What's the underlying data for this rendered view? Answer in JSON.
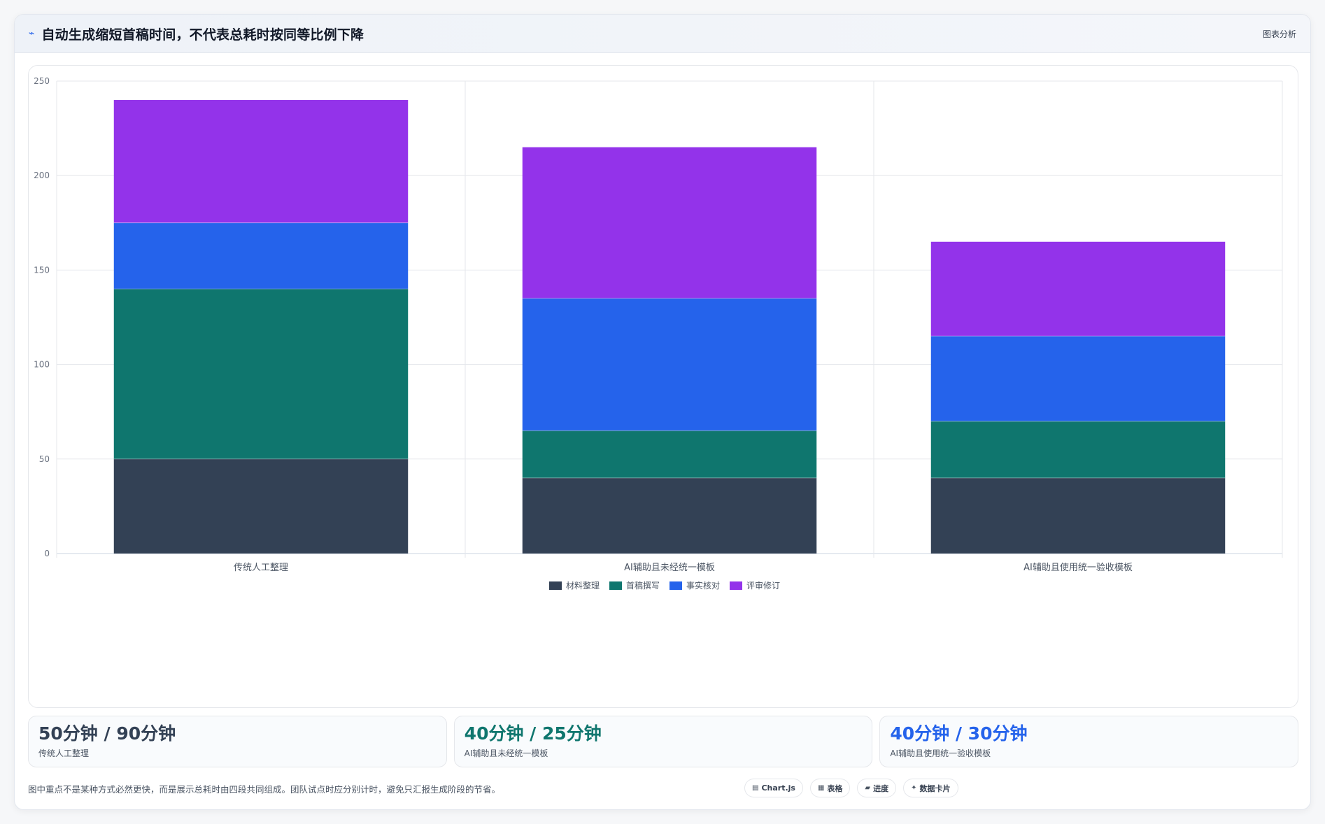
{
  "header": {
    "title": "自动生成缩短首稿时间，不代表总耗时按同等比例下降",
    "tag": "图表分析",
    "icon": "trend-line-icon"
  },
  "chart_data": {
    "type": "bar",
    "stacked": true,
    "categories": [
      "传统人工整理",
      "AI辅助且未经统一模板",
      "AI辅助且使用统一验收模板"
    ],
    "series": [
      {
        "name": "材料整理",
        "values": [
          50,
          40,
          40
        ],
        "color": "#334155"
      },
      {
        "name": "首稿撰写",
        "values": [
          90,
          25,
          30
        ],
        "color": "#0f766e"
      },
      {
        "name": "事实核对",
        "values": [
          35,
          70,
          45
        ],
        "color": "#2563eb"
      },
      {
        "name": "评审修订",
        "values": [
          65,
          80,
          50
        ],
        "color": "#9333ea"
      }
    ],
    "yticks": [
      0,
      50,
      100,
      150,
      200,
      250
    ],
    "ylim": [
      0,
      250
    ],
    "title": "",
    "xlabel": "",
    "ylabel": "",
    "legend_position": "bottom",
    "grid": true
  },
  "stats": [
    {
      "value": "50分钟 / 90分钟",
      "label": "传统人工整理",
      "color": "#334155"
    },
    {
      "value": "40分钟 / 25分钟",
      "label": "AI辅助且未经统一模板",
      "color": "#0f766e"
    },
    {
      "value": "40分钟 / 30分钟",
      "label": "AI辅助且使用统一验收模板",
      "color": "#2563eb"
    }
  ],
  "footer": {
    "note": "图中重点不是某种方式必然更快，而是展示总耗时由四段共同组成。团队试点时应分别计时，避免只汇报生成阶段的节省。",
    "chips": [
      {
        "label": "Chart.js",
        "icon": "chart-icon"
      },
      {
        "label": "表格",
        "icon": "table-icon"
      },
      {
        "label": "进度",
        "icon": "progress-icon"
      },
      {
        "label": "数据卡片",
        "icon": "sparkle-icon"
      }
    ]
  }
}
